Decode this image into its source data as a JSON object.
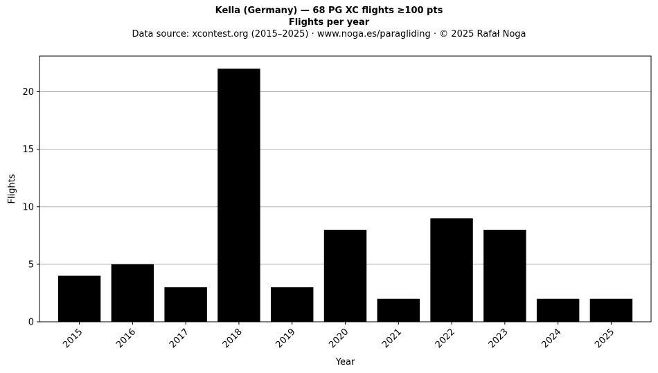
{
  "chart_data": {
    "type": "bar",
    "title": "Kella (Germany)  —  68 PG XC flights ≥100 pts",
    "subtitle": "Flights per year",
    "source": "Data source: xcontest.org (2015–2025)  ·  www.noga.es/paragliding  ·  © 2025 Rafał Noga",
    "xlabel": "Year",
    "ylabel": "Flights",
    "categories": [
      "2015",
      "2016",
      "2017",
      "2018",
      "2019",
      "2020",
      "2021",
      "2022",
      "2023",
      "2024",
      "2025"
    ],
    "values": [
      4,
      5,
      3,
      22,
      3,
      8,
      2,
      9,
      8,
      2,
      2
    ],
    "ylim": [
      0,
      23.1
    ],
    "yticks": [
      0,
      5,
      10,
      15,
      20
    ],
    "grid": "horizontal",
    "bar_color": "#000000",
    "grid_color": "#b0b0b0"
  }
}
